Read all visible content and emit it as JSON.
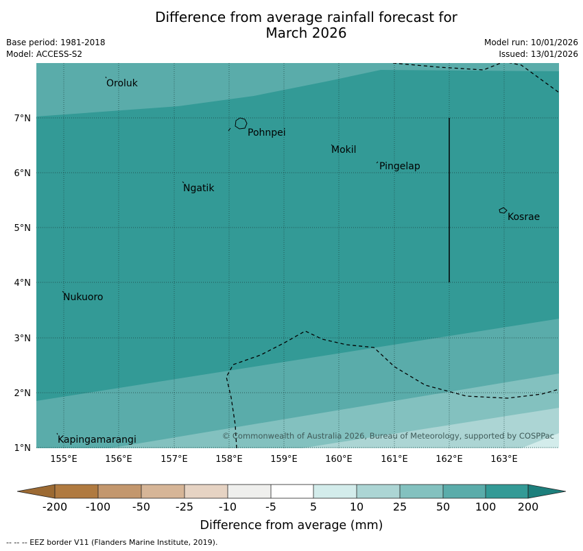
{
  "header": {
    "title_line1": "Difference from average rainfall forecast for",
    "title_line2": "March 2026",
    "base_period": "Base period: 1981-2018",
    "model": "Model: ACCESS-S2",
    "model_run": "Model run: 10/01/2026",
    "issued": "Issued: 13/01/2026"
  },
  "map": {
    "lon_ticks": [
      "155°E",
      "156°E",
      "157°E",
      "158°E",
      "159°E",
      "160°E",
      "161°E",
      "162°E",
      "163°E"
    ],
    "lat_ticks": [
      "7°N",
      "6°N",
      "5°N",
      "4°N",
      "3°N",
      "2°N",
      "1°N"
    ],
    "places": [
      "Oroluk",
      "Pohnpei",
      "Mokil",
      "Pingelap",
      "Ngatik",
      "Kosrae",
      "Nukuoro",
      "Kapingamarangi"
    ],
    "copyright": "© Commonwealth of Australia 2026, Bureau of Meteorology, supported by COSPPac"
  },
  "colorbar": {
    "labels": [
      "-200",
      "-100",
      "-50",
      "-25",
      "-10",
      "-5",
      "5",
      "10",
      "25",
      "50",
      "100",
      "200"
    ],
    "colors": [
      "#9c6a33",
      "#b07a40",
      "#c3976d",
      "#d6b597",
      "#e6d3c3",
      "#efefed",
      "#ffffff",
      "#d3eceb",
      "#acd5d4",
      "#83c1bf",
      "#5aacaa",
      "#339a96",
      "#1d7f7c"
    ],
    "label": "Difference from average (mm)"
  },
  "footer": {
    "credit": "--  --  -- EEZ border V11 (Flanders Marine Institute, 2019)."
  }
}
